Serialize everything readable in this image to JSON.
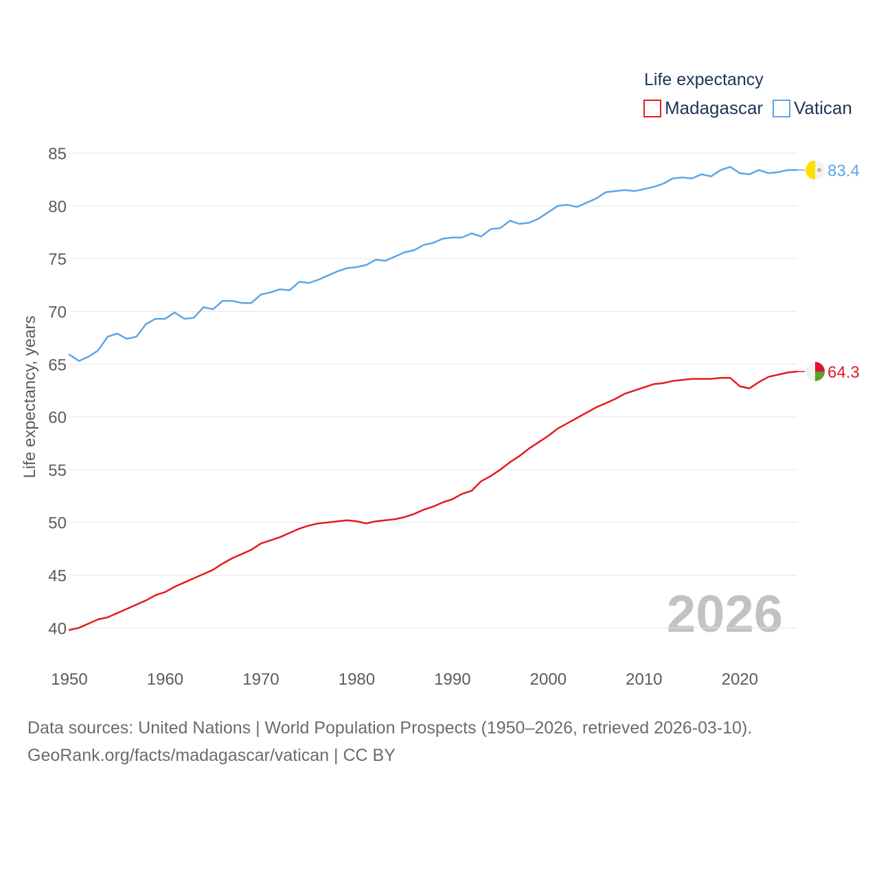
{
  "chart_data": {
    "type": "line",
    "legend_title": "Life expectancy",
    "ylabel": "Life expectancy, years",
    "xlabel": "",
    "ylim": [
      38,
      86.5
    ],
    "xlim": [
      1950,
      2026
    ],
    "yticks": [
      40,
      45,
      50,
      55,
      60,
      65,
      70,
      75,
      80,
      85
    ],
    "xticks": [
      1950,
      1960,
      1970,
      1980,
      1990,
      2000,
      2010,
      2020
    ],
    "current_year": "2026",
    "legend_position": "top-right",
    "x": [
      1950,
      1951,
      1952,
      1953,
      1954,
      1955,
      1956,
      1957,
      1958,
      1959,
      1960,
      1961,
      1962,
      1963,
      1964,
      1965,
      1966,
      1967,
      1968,
      1969,
      1970,
      1971,
      1972,
      1973,
      1974,
      1975,
      1976,
      1977,
      1978,
      1979,
      1980,
      1981,
      1982,
      1983,
      1984,
      1985,
      1986,
      1987,
      1988,
      1989,
      1990,
      1991,
      1992,
      1993,
      1994,
      1995,
      1996,
      1997,
      1998,
      1999,
      2000,
      2001,
      2002,
      2003,
      2004,
      2005,
      2006,
      2007,
      2008,
      2009,
      2010,
      2011,
      2012,
      2013,
      2014,
      2015,
      2016,
      2017,
      2018,
      2019,
      2020,
      2021,
      2022,
      2023,
      2024,
      2025,
      2026
    ],
    "series": [
      {
        "name": "Madagascar",
        "color": "#e41a1c",
        "end_label": "64.3",
        "values": [
          39.8,
          40.0,
          40.4,
          40.8,
          41.0,
          41.4,
          41.8,
          42.2,
          42.6,
          43.1,
          43.4,
          43.9,
          44.3,
          44.7,
          45.1,
          45.5,
          46.1,
          46.6,
          47.0,
          47.4,
          48.0,
          48.3,
          48.6,
          49.0,
          49.4,
          49.7,
          49.9,
          50.0,
          50.1,
          50.2,
          50.1,
          49.9,
          50.1,
          50.2,
          50.3,
          50.5,
          50.8,
          51.2,
          51.5,
          51.9,
          52.2,
          52.7,
          53.0,
          53.9,
          54.4,
          55.0,
          55.7,
          56.3,
          57.0,
          57.6,
          58.2,
          58.9,
          59.4,
          59.9,
          60.4,
          60.9,
          61.3,
          61.7,
          62.2,
          62.5,
          62.8,
          63.1,
          63.2,
          63.4,
          63.5,
          63.6,
          63.6,
          63.6,
          63.7,
          63.7,
          62.9,
          62.7,
          63.3,
          63.8,
          64.0,
          64.2,
          64.3
        ]
      },
      {
        "name": "Vatican",
        "color": "#5da5e8",
        "end_label": "83.4",
        "values": [
          65.9,
          65.3,
          65.7,
          66.3,
          67.6,
          67.9,
          67.4,
          67.6,
          68.8,
          69.3,
          69.3,
          69.9,
          69.3,
          69.4,
          70.4,
          70.2,
          71.0,
          71.0,
          70.8,
          70.8,
          71.6,
          71.8,
          72.1,
          72.0,
          72.8,
          72.7,
          73.0,
          73.4,
          73.8,
          74.1,
          74.2,
          74.4,
          74.9,
          74.8,
          75.2,
          75.6,
          75.8,
          76.3,
          76.5,
          76.9,
          77.0,
          77.0,
          77.4,
          77.1,
          77.8,
          77.9,
          78.6,
          78.3,
          78.4,
          78.8,
          79.4,
          80.0,
          80.1,
          79.9,
          80.3,
          80.7,
          81.3,
          81.4,
          81.5,
          81.4,
          81.6,
          81.8,
          82.1,
          82.6,
          82.7,
          82.6,
          83.0,
          82.8,
          83.4,
          83.7,
          83.1,
          83.0,
          83.4,
          83.1,
          83.2,
          83.4,
          83.4
        ]
      }
    ]
  },
  "footer": {
    "line1": "Data sources: United Nations | World Population Prospects (1950–2026, retrieved 2026-03-10).",
    "line2": "GeoRank.org/facts/madagascar/vatican | CC BY"
  }
}
